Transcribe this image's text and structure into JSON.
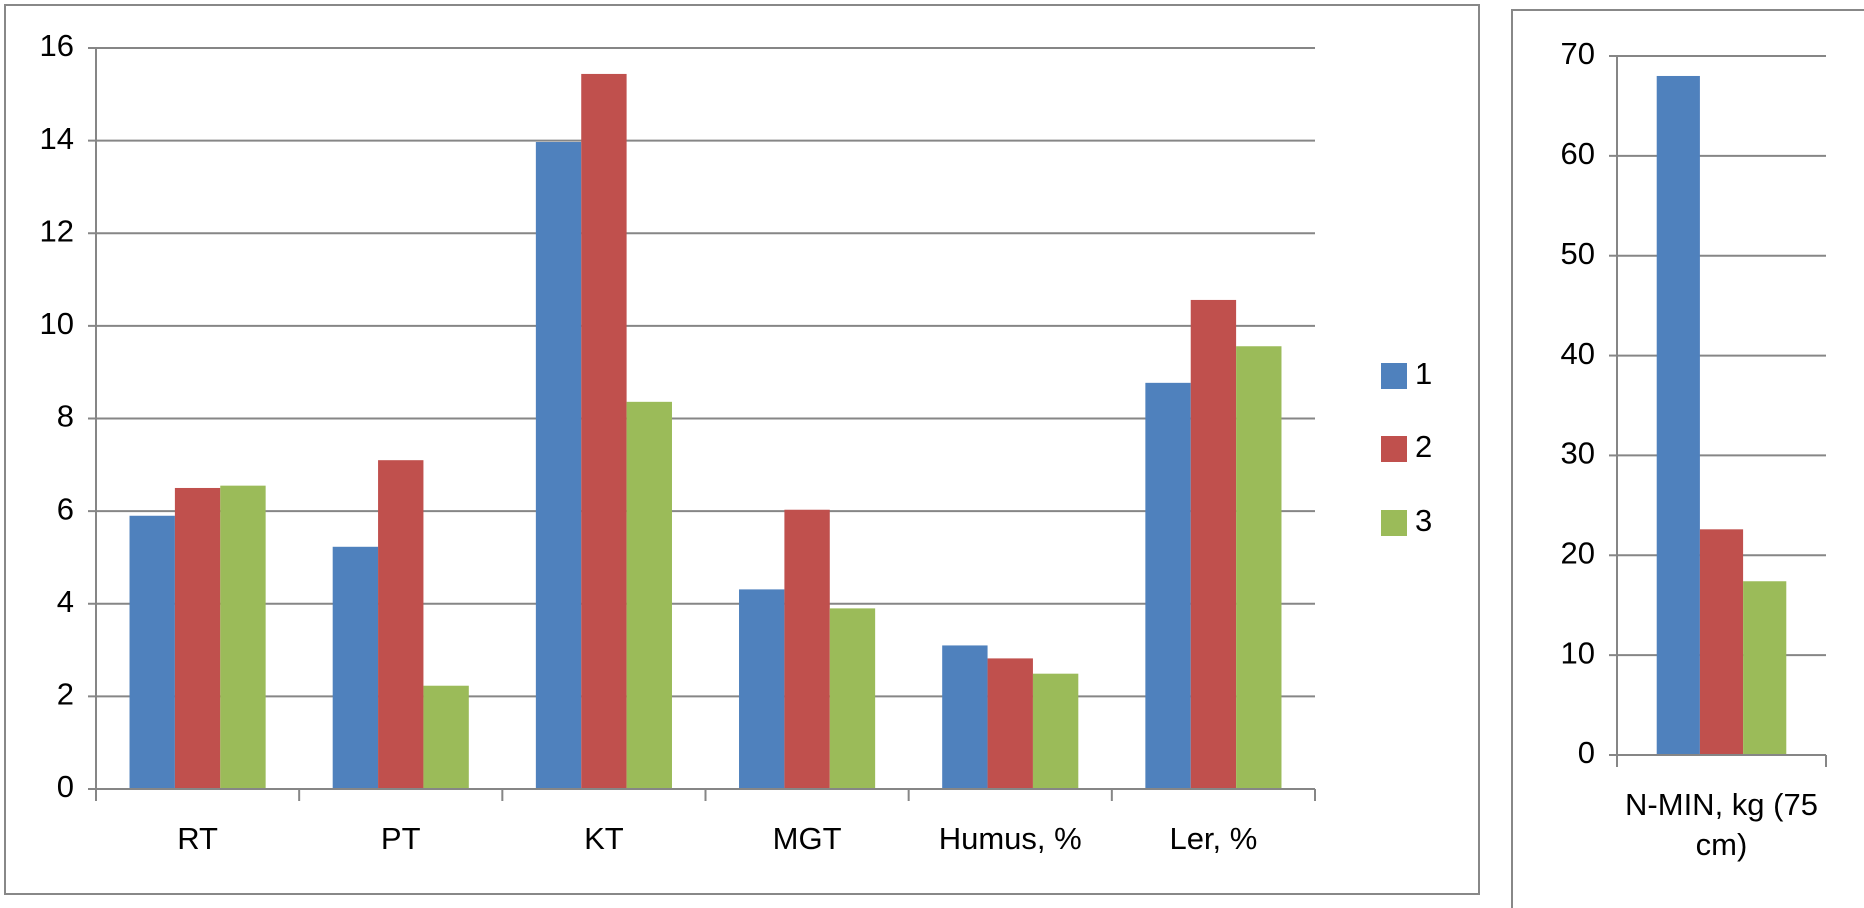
{
  "chart_data": [
    {
      "type": "bar",
      "categories": [
        "RT",
        "PT",
        "KT",
        "MGT",
        "Humus, %",
        "Ler, %"
      ],
      "series": [
        {
          "name": "1",
          "color": "#4f81bd",
          "values": [
            5.9,
            5.23,
            13.97,
            4.31,
            3.1,
            8.77
          ]
        },
        {
          "name": "2",
          "color": "#c0504d",
          "values": [
            6.5,
            7.1,
            15.44,
            6.03,
            2.82,
            10.56
          ]
        },
        {
          "name": "3",
          "color": "#9bbb59",
          "values": [
            6.55,
            2.23,
            8.36,
            3.9,
            2.49,
            9.56
          ]
        }
      ],
      "ylim": [
        0,
        16
      ],
      "yticks": [
        0,
        2,
        4,
        6,
        8,
        10,
        12,
        14,
        16
      ],
      "grid": true,
      "legend": "right"
    },
    {
      "type": "bar",
      "categories": [
        "N-MIN, kg (75 cm)"
      ],
      "series": [
        {
          "color": "#4f81bd",
          "values": [
            68.0
          ]
        },
        {
          "color": "#c0504d",
          "values": [
            22.6
          ]
        },
        {
          "color": "#9bbb59",
          "values": [
            17.4
          ]
        }
      ],
      "ylim": [
        0,
        70
      ],
      "yticks": [
        0,
        10,
        20,
        30,
        40,
        50,
        60,
        70
      ],
      "grid": true
    }
  ]
}
